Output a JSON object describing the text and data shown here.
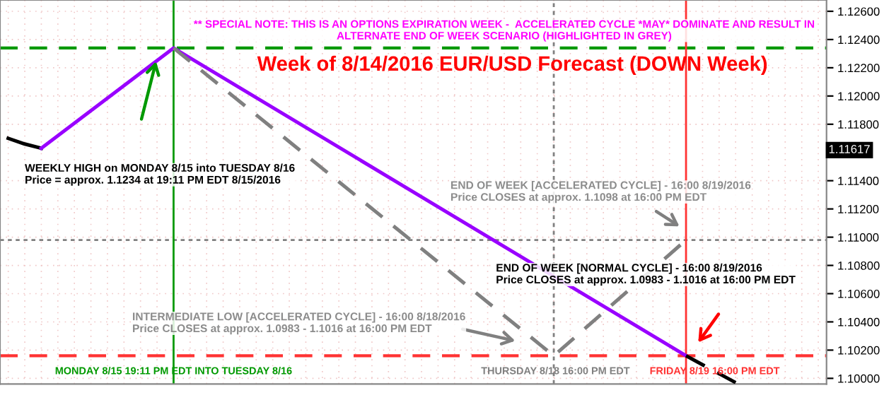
{
  "chart_data": {
    "type": "line",
    "title": "Week of 8/14/2016 EUR/USD Forecast (DOWN Week)",
    "categories": [
      null,
      null,
      null,
      null,
      null,
      null,
      null,
      null,
      null,
      null,
      null,
      null,
      null,
      null,
      null,
      null,
      null,
      null,
      null,
      null,
      null,
      null,
      null,
      null,
      null,
      null,
      null,
      null,
      null,
      null,
      null,
      null,
      null,
      null,
      null,
      null,
      null,
      null,
      null,
      null,
      null,
      null,
      null,
      null,
      null,
      null,
      null,
      null,
      null,
      null
    ],
    "ylim": [
      1.0996,
      1.1268
    ],
    "yticks": [
      {
        "value": 1.1,
        "label": "1.10000"
      },
      {
        "value": 1.102,
        "label": "1.10200"
      },
      {
        "value": 1.104,
        "label": "1.10400"
      },
      {
        "value": 1.106,
        "label": "1.10600"
      },
      {
        "value": 1.108,
        "label": "1.10800"
      },
      {
        "value": 1.11,
        "label": "1.11000"
      },
      {
        "value": 1.112,
        "label": "1.11200"
      },
      {
        "value": 1.114,
        "label": "1.11400"
      },
      {
        "value": 1.118,
        "label": "1.11800"
      },
      {
        "value": 1.12,
        "label": "1.12000"
      },
      {
        "value": 1.122,
        "label": "1.12200"
      },
      {
        "value": 1.124,
        "label": "1.12400"
      },
      {
        "value": 1.126,
        "label": "1.12600"
      }
    ],
    "tick_labels": "y",
    "grid": true,
    "series": [
      {
        "color": "#000000",
        "values": [
          1.117,
          1.1166,
          1.1163,
          null,
          null,
          null,
          null,
          null,
          null,
          null,
          null,
          null,
          null,
          null,
          null,
          null,
          null,
          null,
          null,
          null,
          null,
          null,
          null,
          null,
          null,
          null,
          null,
          null,
          null,
          null,
          null,
          null,
          null,
          null,
          null,
          null,
          null,
          null,
          null,
          null,
          null,
          null,
          null,
          null,
          null,
          null,
          null,
          null,
          null,
          null
        ]
      },
      {
        "color": "#9900ff",
        "values": [
          null,
          null,
          1.1163,
          null,
          null,
          null,
          null,
          null,
          null,
          null,
          1.1234,
          null,
          null,
          null,
          null,
          null,
          null,
          null,
          null,
          null,
          null,
          null,
          null,
          null,
          null,
          null,
          null,
          null,
          null,
          null,
          null,
          null,
          null,
          null,
          null,
          null,
          null,
          null,
          null,
          null,
          null,
          1.1016,
          null,
          null,
          null,
          null,
          null,
          null,
          null,
          null
        ]
      },
      {
        "color": "#808080",
        "line_style": "dashed",
        "values": [
          null,
          null,
          null,
          null,
          null,
          null,
          null,
          null,
          null,
          null,
          1.1234,
          null,
          null,
          null,
          null,
          null,
          null,
          null,
          null,
          null,
          null,
          null,
          null,
          null,
          null,
          null,
          null,
          null,
          null,
          null,
          null,
          null,
          null,
          1.1016,
          null,
          null,
          null,
          null,
          null,
          null,
          null,
          1.1098,
          null,
          null,
          null,
          null,
          null,
          null,
          null,
          null
        ]
      },
      {
        "color": "#000000",
        "line_style": "dashed",
        "values": [
          null,
          null,
          null,
          null,
          null,
          null,
          null,
          null,
          null,
          null,
          null,
          null,
          null,
          null,
          null,
          null,
          null,
          null,
          null,
          null,
          null,
          null,
          null,
          null,
          null,
          null,
          null,
          null,
          null,
          null,
          null,
          null,
          null,
          null,
          null,
          null,
          null,
          null,
          null,
          null,
          null,
          1.1016,
          null,
          null,
          1.0997,
          null,
          null,
          null,
          null,
          null
        ]
      }
    ],
    "ref_lines": [
      {
        "axis": "y",
        "value": 1.1234,
        "color": "#009900",
        "line_style": "dashed"
      },
      {
        "axis": "y",
        "value": 1.1016,
        "color": "#ff3333",
        "line_style": "dashed"
      },
      {
        "axis": "y",
        "value": 1.1098,
        "color": "#808080",
        "line_style": "dotted"
      }
    ],
    "annotations": [
      "** SPECIAL NOTE: THIS IS AN OPTIONS EXPIRATION WEEK -  ACCELERATED CYCLE *MAY* DOMINATE AND RESULT IN\nALTERNATE END OF WEEK SCENARIO (HIGHLIGHTED IN GREY)",
      "WEEKLY HIGH on MONDAY 8/15 into TUESDAY 8/16\nPrice = approx. 1.1234 at 19:11 PM EDT 8/15/2016",
      "END OF WEEK [ACCELERATED CYCLE] - 16:00 8/19/2016\nPrice CLOSES at approx. 1.1098 at 16:00 PM EDT",
      "END OF WEEK [NORMAL CYCLE] - 16:00 8/19/2016\nPrice CLOSES at approx. 1.0983 - 1.1016 at 16:00 PM EDT",
      "INTERMEDIATE LOW [ACCELERATED CYCLE] - 16:00 8/18/2016\nPrice CLOSES at approx. 1.0983 - 1.1016 at 16:00 PM EDT",
      {
        "text": "1.11617",
        "y": 1.11617
      },
      "MONDAY 8/15 19:11 PM EDT INTO TUESDAY 8/16",
      "THURSDAY 8/18 16:00 PM EDT",
      "FRIDAY 8/19 16:00 PM EDT"
    ]
  }
}
